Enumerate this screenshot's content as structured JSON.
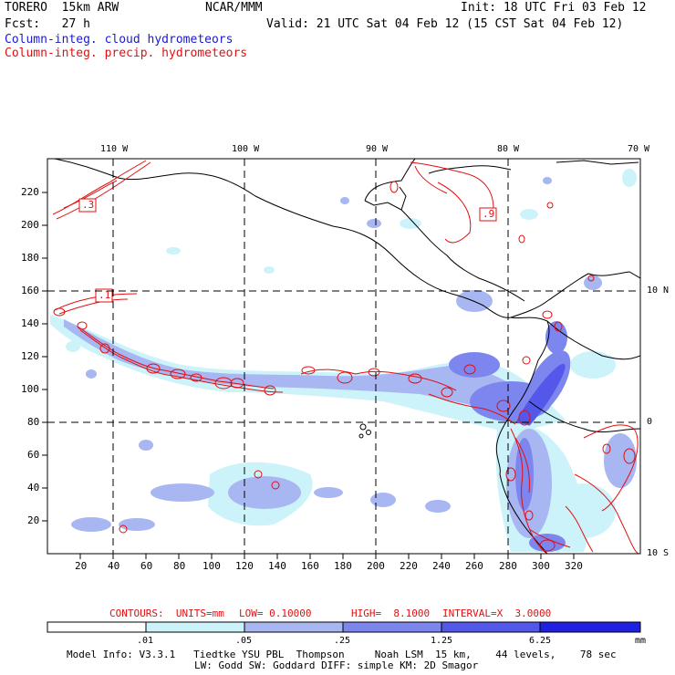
{
  "header": {
    "model_name": "TORERO  15km ARW",
    "agency": "NCAR/MMM",
    "init": "Init: 18 UTC Fri 03 Feb 12",
    "forecast": "Fcst:   27 h",
    "valid": "Valid: 21 UTC Sat 04 Feb 12 (15 CST Sat 04 Feb 12)",
    "field_cloud": "Column-integ. cloud hydrometeors",
    "field_precip": "Column-integ. precip. hydrometeors"
  },
  "colors": {
    "cloud_text": "#1a1ad0",
    "precip_text": "#e01010",
    "fill_levels": [
      "#ffffff",
      "#cdf3fa",
      "#a8b6f2",
      "#7d86ee",
      "#5358ea",
      "#1f1fe6"
    ]
  },
  "map": {
    "top_lon_labels": [
      "110 W",
      "100 W",
      "90 W",
      "80 W",
      "70 W"
    ],
    "right_lat_labels": [
      "10 N",
      "0",
      "10 S"
    ],
    "x_grid_labels": [
      "20",
      "40",
      "60",
      "80",
      "100",
      "120",
      "140",
      "160",
      "180",
      "200",
      "220",
      "240",
      "260",
      "280",
      "300",
      "320"
    ],
    "y_grid_labels": [
      "20",
      "40",
      "60",
      "80",
      "100",
      "120",
      "140",
      "160",
      "180",
      "200",
      "220"
    ],
    "box_labels": [
      ".3",
      ".1",
      ".9"
    ]
  },
  "contour_info": {
    "units": "CONTOURS:  UNITS=mm",
    "low": "LOW= 0.10000",
    "high": "HIGH=  8.1000",
    "interval": "INTERVAL=X  3.0000"
  },
  "colorbar": {
    "ticks": [
      ".01",
      ".05",
      ".25",
      "1.25",
      "6.25"
    ],
    "unit": "mm"
  },
  "model_info": {
    "line1": "Model Info: V3.3.1   Tiedtke YSU PBL  Thompson     Noah LSM  15 km,    44 levels,    78 sec",
    "line2": "LW: Godd SW: Goddard DIFF: simple KM: 2D Smagor"
  }
}
